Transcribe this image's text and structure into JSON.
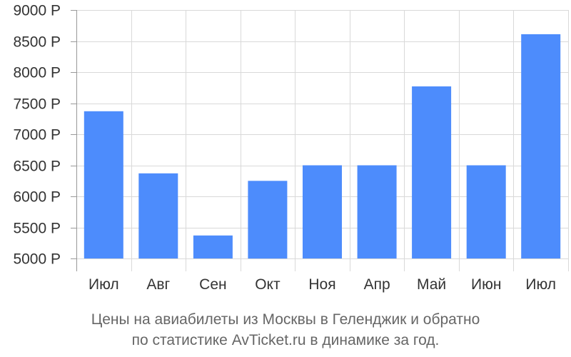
{
  "chart_data": {
    "type": "bar",
    "categories": [
      "Июл",
      "Авг",
      "Сен",
      "Окт",
      "Ноя",
      "Апр",
      "Май",
      "Июн",
      "Июл"
    ],
    "values": [
      7370,
      6370,
      5370,
      6250,
      6500,
      6500,
      7770,
      6500,
      8610
    ],
    "ylim": [
      5000,
      9000
    ],
    "yticks": [
      5000,
      5500,
      6000,
      6500,
      7000,
      7500,
      8000,
      8500,
      9000
    ],
    "ytick_labels": [
      "5000 Р",
      "5500 Р",
      "6000 Р",
      "6500 Р",
      "7000 Р",
      "7500 Р",
      "8000 Р",
      "8500 Р",
      "9000 Р"
    ],
    "grid": true,
    "bar_color": "#4d8cfc",
    "grid_color": "#d9d9d9",
    "caption_lines": [
      "Цены на авиабилеты из Москвы в Геленджик и обратно",
      "по статистике AvTicket.ru в динамике за год."
    ]
  }
}
